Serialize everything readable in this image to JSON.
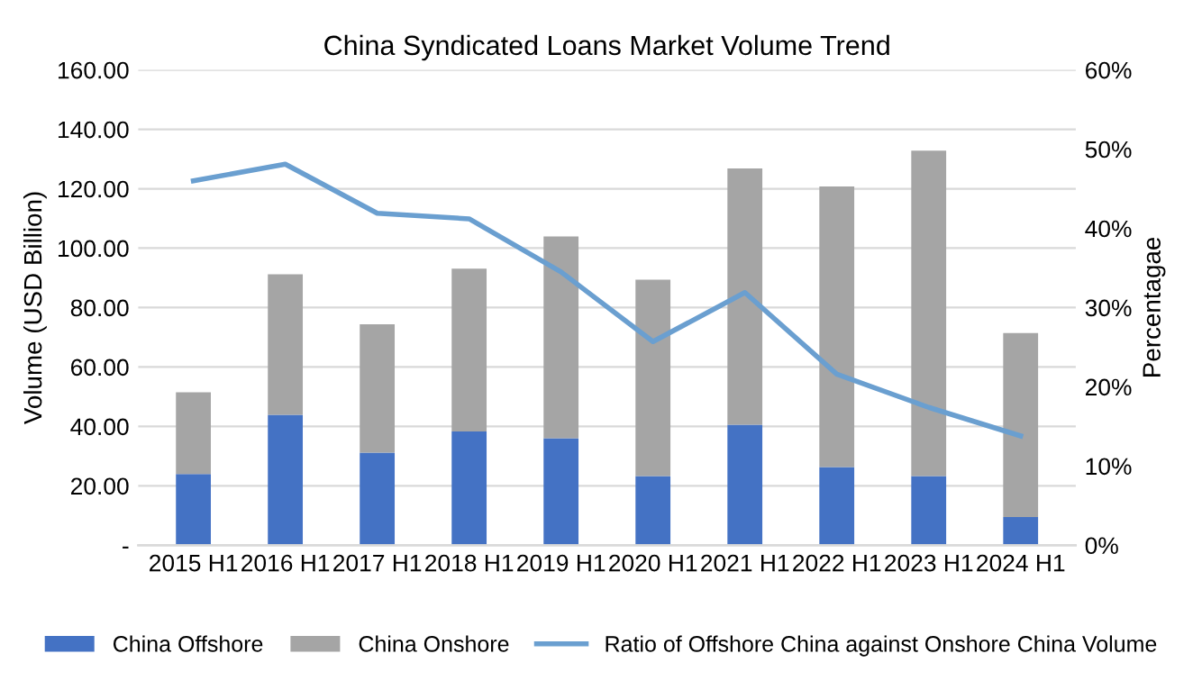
{
  "chart_data": {
    "type": "bar",
    "title": "China Syndicated Loans Market Volume Trend",
    "ylabel": "Volume (USD Billion)",
    "y2label": "Percentagae",
    "categories": [
      "2015 H1",
      "2016 H1",
      "2017 H1",
      "2018 H1",
      "2019 H1",
      "2020 H1",
      "2021 H1",
      "2022 H1",
      "2023 H1",
      "2024 H1"
    ],
    "stacked": true,
    "series": [
      {
        "name": "China Offshore",
        "color": "#4472c4",
        "values": [
          24.0,
          43.9,
          31.2,
          38.3,
          36.0,
          23.3,
          40.6,
          26.3,
          23.3,
          9.5
        ]
      },
      {
        "name": "China Onshore",
        "color": "#a5a5a5",
        "values": [
          27.5,
          47.3,
          43.2,
          54.8,
          67.9,
          66.1,
          86.2,
          94.5,
          109.5,
          61.9
        ]
      },
      {
        "name": "Ratio of Offshore China against Onshore China Volume",
        "type": "line",
        "axis": "y2",
        "color": "#6a9fd0",
        "values": [
          46.0,
          48.1,
          41.9,
          41.2,
          34.5,
          25.7,
          31.9,
          21.6,
          17.4,
          13.8
        ]
      }
    ],
    "ylim": [
      0,
      160
    ],
    "yticks": [
      {
        "value": 0,
        "label": "-"
      },
      {
        "value": 20,
        "label": "20.00"
      },
      {
        "value": 40,
        "label": "40.00"
      },
      {
        "value": 60,
        "label": "60.00"
      },
      {
        "value": 80,
        "label": "80.00"
      },
      {
        "value": 100,
        "label": "100.00"
      },
      {
        "value": 120,
        "label": "120.00"
      },
      {
        "value": 140,
        "label": "140.00"
      },
      {
        "value": 160,
        "label": "160.00"
      }
    ],
    "y2lim": [
      0,
      60
    ],
    "y2ticks": [
      {
        "value": 0,
        "label": "0%"
      },
      {
        "value": 10,
        "label": "10%"
      },
      {
        "value": 20,
        "label": "20%"
      },
      {
        "value": 30,
        "label": "30%"
      },
      {
        "value": 40,
        "label": "40%"
      },
      {
        "value": 50,
        "label": "50%"
      },
      {
        "value": 60,
        "label": "60%"
      }
    ],
    "grid": "y",
    "legend": "bottom",
    "marker": "none",
    "line_style": "solid"
  }
}
